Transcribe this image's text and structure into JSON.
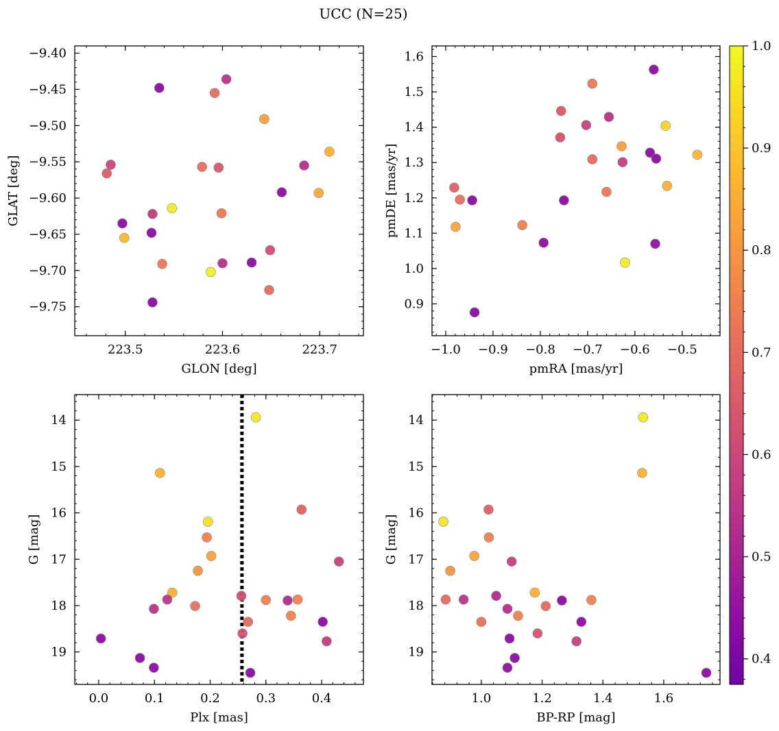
{
  "figure": {
    "title": "UCC (N=25)",
    "colorbar": {
      "range": [
        0.375,
        1.0
      ],
      "ticks": [
        0.4,
        0.5,
        0.6,
        0.7,
        0.8,
        0.9,
        1.0
      ],
      "tick_labels": [
        "0.4",
        "0.5",
        "0.6",
        "0.7",
        "0.8",
        "0.9",
        "1.0"
      ],
      "colormap": "plasma"
    }
  },
  "chart_data": [
    {
      "id": "glon-glat",
      "type": "scatter",
      "xlabel": "GLON [deg]",
      "ylabel": "GLAT [deg]",
      "xlim": [
        223.448,
        223.745
      ],
      "ylim": [
        -9.79,
        -9.39
      ],
      "xticks": [
        223.5,
        223.6,
        223.7
      ],
      "xtick_labels": [
        "223.5",
        "223.6",
        "223.7"
      ],
      "yticks": [
        -9.75,
        -9.7,
        -9.65,
        -9.6,
        -9.55,
        -9.5,
        -9.45,
        -9.4
      ],
      "ytick_labels": [
        "−9.75",
        "−9.70",
        "−9.65",
        "−9.60",
        "−9.55",
        "−9.50",
        "−9.45",
        "−9.40"
      ],
      "grid": false,
      "points": [
        {
          "x": 223.535,
          "y": -9.448,
          "c": 0.43
        },
        {
          "x": 223.604,
          "y": -9.436,
          "c": 0.54
        },
        {
          "x": 223.592,
          "y": -9.455,
          "c": 0.7
        },
        {
          "x": 223.643,
          "y": -9.491,
          "c": 0.82
        },
        {
          "x": 223.71,
          "y": -9.536,
          "c": 0.86
        },
        {
          "x": 223.684,
          "y": -9.555,
          "c": 0.53
        },
        {
          "x": 223.485,
          "y": -9.554,
          "c": 0.59
        },
        {
          "x": 223.481,
          "y": -9.566,
          "c": 0.66
        },
        {
          "x": 223.579,
          "y": -9.557,
          "c": 0.71
        },
        {
          "x": 223.596,
          "y": -9.558,
          "c": 0.65
        },
        {
          "x": 223.661,
          "y": -9.592,
          "c": 0.44
        },
        {
          "x": 223.699,
          "y": -9.593,
          "c": 0.84
        },
        {
          "x": 223.548,
          "y": -9.614,
          "c": 0.97
        },
        {
          "x": 223.528,
          "y": -9.622,
          "c": 0.57
        },
        {
          "x": 223.599,
          "y": -9.621,
          "c": 0.73
        },
        {
          "x": 223.497,
          "y": -9.635,
          "c": 0.44
        },
        {
          "x": 223.527,
          "y": -9.648,
          "c": 0.43
        },
        {
          "x": 223.499,
          "y": -9.655,
          "c": 0.87
        },
        {
          "x": 223.649,
          "y": -9.672,
          "c": 0.62
        },
        {
          "x": 223.538,
          "y": -9.691,
          "c": 0.73
        },
        {
          "x": 223.6,
          "y": -9.69,
          "c": 0.53
        },
        {
          "x": 223.63,
          "y": -9.689,
          "c": 0.44
        },
        {
          "x": 223.588,
          "y": -9.702,
          "c": 0.98
        },
        {
          "x": 223.648,
          "y": -9.727,
          "c": 0.7
        },
        {
          "x": 223.528,
          "y": -9.744,
          "c": 0.43
        }
      ]
    },
    {
      "id": "pmra-pmde",
      "type": "scatter",
      "xlabel": "pmRA [mas/yr]",
      "ylabel": "pmDE [mas/yr]",
      "xlim": [
        -1.029,
        -0.42
      ],
      "ylim": [
        0.81,
        1.63
      ],
      "xticks": [
        -1.0,
        -0.9,
        -0.8,
        -0.7,
        -0.6,
        -0.5
      ],
      "xtick_labels": [
        "−1.0",
        "−0.9",
        "−0.8",
        "−0.7",
        "−0.6",
        "−0.5"
      ],
      "yticks": [
        0.9,
        1.0,
        1.1,
        1.2,
        1.3,
        1.4,
        1.5,
        1.6
      ],
      "ytick_labels": [
        "0.9",
        "1.0",
        "1.1",
        "1.2",
        "1.3",
        "1.4",
        "1.5",
        "1.6"
      ],
      "grid": false,
      "points": [
        {
          "x": -0.56,
          "y": 1.563,
          "c": 0.44
        },
        {
          "x": -0.69,
          "y": 1.523,
          "c": 0.73
        },
        {
          "x": -0.756,
          "y": 1.446,
          "c": 0.65
        },
        {
          "x": -0.655,
          "y": 1.429,
          "c": 0.54
        },
        {
          "x": -0.703,
          "y": 1.406,
          "c": 0.58
        },
        {
          "x": -0.535,
          "y": 1.404,
          "c": 0.93
        },
        {
          "x": -0.758,
          "y": 1.371,
          "c": 0.63
        },
        {
          "x": -0.628,
          "y": 1.346,
          "c": 0.82
        },
        {
          "x": -0.568,
          "y": 1.328,
          "c": 0.44
        },
        {
          "x": -0.468,
          "y": 1.322,
          "c": 0.87
        },
        {
          "x": -0.555,
          "y": 1.311,
          "c": 0.44
        },
        {
          "x": -0.69,
          "y": 1.309,
          "c": 0.7
        },
        {
          "x": -0.626,
          "y": 1.301,
          "c": 0.58
        },
        {
          "x": -0.532,
          "y": 1.234,
          "c": 0.86
        },
        {
          "x": -0.982,
          "y": 1.229,
          "c": 0.67
        },
        {
          "x": -0.66,
          "y": 1.217,
          "c": 0.73
        },
        {
          "x": -0.97,
          "y": 1.195,
          "c": 0.71
        },
        {
          "x": -0.944,
          "y": 1.193,
          "c": 0.43
        },
        {
          "x": -0.75,
          "y": 1.193,
          "c": 0.43
        },
        {
          "x": -0.838,
          "y": 1.123,
          "c": 0.75
        },
        {
          "x": -0.979,
          "y": 1.118,
          "c": 0.83
        },
        {
          "x": -0.793,
          "y": 1.073,
          "c": 0.44
        },
        {
          "x": -0.557,
          "y": 1.07,
          "c": 0.45
        },
        {
          "x": -0.621,
          "y": 1.017,
          "c": 0.98
        },
        {
          "x": -0.939,
          "y": 0.876,
          "c": 0.43
        }
      ]
    },
    {
      "id": "plx-g",
      "type": "scatter",
      "xlabel": "Plx [mas]",
      "ylabel": "G [mag]",
      "xlim": [
        -0.043,
        0.475
      ],
      "ylim": [
        19.7,
        13.45
      ],
      "y_inverted": true,
      "xticks": [
        0.0,
        0.1,
        0.2,
        0.3,
        0.4
      ],
      "xtick_labels": [
        "0.0",
        "0.1",
        "0.2",
        "0.3",
        "0.4"
      ],
      "yticks": [
        14,
        15,
        16,
        17,
        18,
        19
      ],
      "ytick_labels": [
        "14",
        "15",
        "16",
        "17",
        "18",
        "19"
      ],
      "grid": false,
      "vline": {
        "x": 0.257,
        "style": "dotted"
      },
      "points": [
        {
          "x": 0.282,
          "y": 13.94,
          "c": 0.97
        },
        {
          "x": 0.11,
          "y": 15.14,
          "c": 0.86
        },
        {
          "x": 0.364,
          "y": 15.93,
          "c": 0.67
        },
        {
          "x": 0.196,
          "y": 16.19,
          "c": 0.96
        },
        {
          "x": 0.194,
          "y": 16.53,
          "c": 0.75
        },
        {
          "x": 0.202,
          "y": 16.93,
          "c": 0.83
        },
        {
          "x": 0.431,
          "y": 17.05,
          "c": 0.58
        },
        {
          "x": 0.178,
          "y": 17.25,
          "c": 0.8
        },
        {
          "x": 0.132,
          "y": 17.72,
          "c": 0.86
        },
        {
          "x": 0.256,
          "y": 17.79,
          "c": 0.62
        },
        {
          "x": 0.123,
          "y": 17.87,
          "c": 0.55
        },
        {
          "x": 0.3,
          "y": 17.88,
          "c": 0.75
        },
        {
          "x": 0.339,
          "y": 17.89,
          "c": 0.52
        },
        {
          "x": 0.357,
          "y": 17.87,
          "c": 0.75
        },
        {
          "x": 0.173,
          "y": 18.01,
          "c": 0.71
        },
        {
          "x": 0.099,
          "y": 18.07,
          "c": 0.55
        },
        {
          "x": 0.345,
          "y": 18.22,
          "c": 0.76
        },
        {
          "x": 0.268,
          "y": 18.35,
          "c": 0.7
        },
        {
          "x": 0.402,
          "y": 18.35,
          "c": 0.44
        },
        {
          "x": 0.258,
          "y": 18.6,
          "c": 0.63
        },
        {
          "x": 0.004,
          "y": 18.71,
          "c": 0.43
        },
        {
          "x": 0.409,
          "y": 18.77,
          "c": 0.57
        },
        {
          "x": 0.074,
          "y": 19.13,
          "c": 0.44
        },
        {
          "x": 0.099,
          "y": 19.34,
          "c": 0.44
        },
        {
          "x": 0.272,
          "y": 19.45,
          "c": 0.43
        }
      ]
    },
    {
      "id": "bprp-g",
      "type": "scatter",
      "xlabel": "BP-RP [mag]",
      "ylabel": "G [mag]",
      "xlim": [
        0.838,
        1.785
      ],
      "ylim": [
        19.7,
        13.45
      ],
      "y_inverted": true,
      "xticks": [
        1.0,
        1.2,
        1.4,
        1.6
      ],
      "xtick_labels": [
        "1.0",
        "1.2",
        "1.4",
        "1.6"
      ],
      "yticks": [
        14,
        15,
        16,
        17,
        18,
        19
      ],
      "ytick_labels": [
        "14",
        "15",
        "16",
        "17",
        "18",
        "19"
      ],
      "grid": false,
      "points": [
        {
          "x": 1.532,
          "y": 13.94,
          "c": 0.97
        },
        {
          "x": 1.529,
          "y": 15.14,
          "c": 0.86
        },
        {
          "x": 1.024,
          "y": 15.93,
          "c": 0.67
        },
        {
          "x": 0.875,
          "y": 16.19,
          "c": 0.96
        },
        {
          "x": 1.025,
          "y": 16.53,
          "c": 0.75
        },
        {
          "x": 0.977,
          "y": 16.93,
          "c": 0.83
        },
        {
          "x": 1.1,
          "y": 17.05,
          "c": 0.58
        },
        {
          "x": 0.898,
          "y": 17.25,
          "c": 0.8
        },
        {
          "x": 1.176,
          "y": 17.72,
          "c": 0.86
        },
        {
          "x": 1.049,
          "y": 17.79,
          "c": 0.52
        },
        {
          "x": 0.883,
          "y": 17.87,
          "c": 0.7
        },
        {
          "x": 0.942,
          "y": 17.87,
          "c": 0.54
        },
        {
          "x": 1.265,
          "y": 17.89,
          "c": 0.44
        },
        {
          "x": 1.362,
          "y": 17.88,
          "c": 0.75
        },
        {
          "x": 1.212,
          "y": 18.01,
          "c": 0.7
        },
        {
          "x": 1.086,
          "y": 18.07,
          "c": 0.53
        },
        {
          "x": 1.121,
          "y": 18.22,
          "c": 0.75
        },
        {
          "x": 1.0,
          "y": 18.35,
          "c": 0.71
        },
        {
          "x": 1.329,
          "y": 18.35,
          "c": 0.44
        },
        {
          "x": 1.185,
          "y": 18.6,
          "c": 0.63
        },
        {
          "x": 1.093,
          "y": 18.71,
          "c": 0.43
        },
        {
          "x": 1.313,
          "y": 18.77,
          "c": 0.58
        },
        {
          "x": 1.11,
          "y": 19.13,
          "c": 0.44
        },
        {
          "x": 1.086,
          "y": 19.34,
          "c": 0.45
        },
        {
          "x": 1.74,
          "y": 19.45,
          "c": 0.43
        }
      ]
    }
  ]
}
